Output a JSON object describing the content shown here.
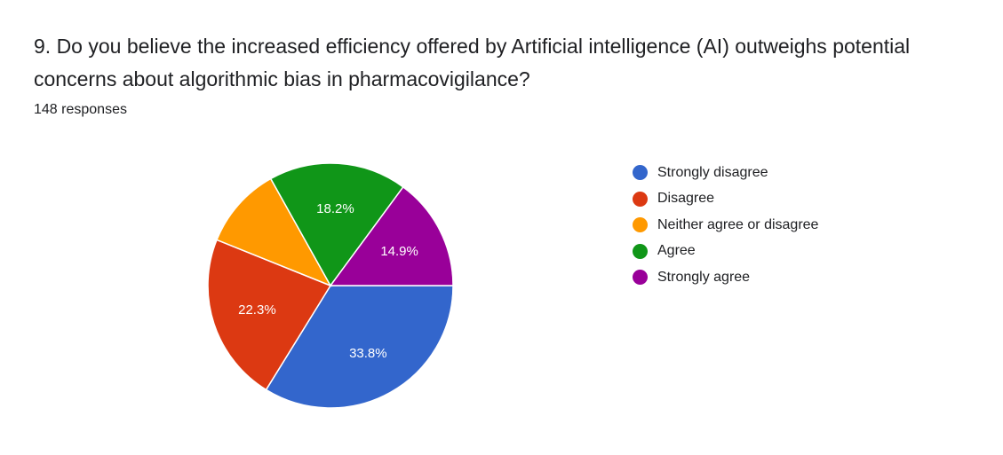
{
  "question": {
    "title": "9. Do you believe the increased efficiency offered by Artificial intelligence (AI) outweighs potential concerns about algorithmic bias in pharmacovigilance?",
    "responses": "148 responses"
  },
  "chart_data": {
    "type": "pie",
    "title": "9. Do you believe the increased efficiency offered by Artificial intelligence (AI) outweighs potential concerns about algorithmic bias in pharmacovigilance?",
    "subtitle": "148 responses",
    "legend_position": "right",
    "slices": [
      {
        "label": "Strongly disagree",
        "value": 33.8,
        "display": "33.8%",
        "color": "#3366cc"
      },
      {
        "label": "Disagree",
        "value": 22.3,
        "display": "22.3%",
        "color": "#dc3912"
      },
      {
        "label": "Neither agree or disagree",
        "value": 10.8,
        "display": "",
        "color": "#ff9900"
      },
      {
        "label": "Agree",
        "value": 18.2,
        "display": "18.2%",
        "color": "#109618"
      },
      {
        "label": "Strongly agree",
        "value": 14.9,
        "display": "14.9%",
        "color": "#990099"
      }
    ]
  }
}
